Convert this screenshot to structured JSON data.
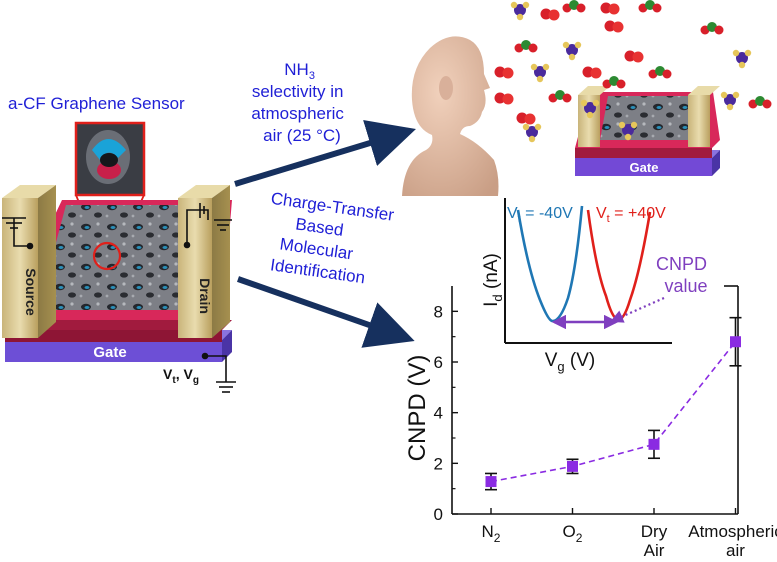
{
  "annotations": {
    "sensor_title": "a-CF Graphene Sensor",
    "arrow_top_lines": [
      "NH",
      "selectivity in",
      "atmospheric",
      "air (25 °C)"
    ],
    "arrow_top_sub": "3",
    "arrow_bottom_lines": [
      "Charge-Transfer",
      "Based",
      "Molecular",
      "Identification"
    ]
  },
  "device": {
    "source_label": "Source",
    "drain_label": "Drain",
    "gate_label": "Gate",
    "vt_label": "V",
    "vt_sub": "t",
    "vg_label": "V",
    "vg_sub": "g",
    "top_gate_label": "Gate"
  },
  "inset": {
    "ylabel": "I",
    "ylabel_sub": "d",
    "ylabel_unit": " (nA)",
    "xlabel": "V",
    "xlabel_sub": "g",
    "xlabel_unit": " (V)",
    "legend_blue_pre": "V",
    "legend_blue_sub": "t",
    "legend_blue_post": " = -40V",
    "legend_red_pre": "V",
    "legend_red_sub": "t",
    "legend_red_post": " = +40V",
    "cnpd_label_1": "CNPD",
    "cnpd_label_2": "value",
    "colors": {
      "blue": "#1f77b4",
      "red": "#e0201b",
      "purple": "#7f3fbf"
    }
  },
  "chart_data": {
    "type": "scatter",
    "ylabel": "CNPD (V)",
    "categories": [
      "N2",
      "O2",
      "Dry Air",
      "Atmospheric air"
    ],
    "category_labels": [
      {
        "main": "N",
        "sub": "2"
      },
      {
        "main": "O",
        "sub": "2"
      },
      {
        "lines": [
          "Dry",
          "Air"
        ]
      },
      {
        "lines": [
          "Atmospheric",
          "air"
        ]
      }
    ],
    "values": [
      1.28,
      1.88,
      2.75,
      6.8
    ],
    "errors": [
      0.32,
      0.28,
      0.55,
      0.95
    ],
    "ylim": [
      0,
      9
    ],
    "yticks": [
      0,
      2,
      4,
      6,
      8
    ],
    "marker_color": "#8a2be2",
    "line_color": "#8a2be2",
    "line_style": "dashed"
  }
}
